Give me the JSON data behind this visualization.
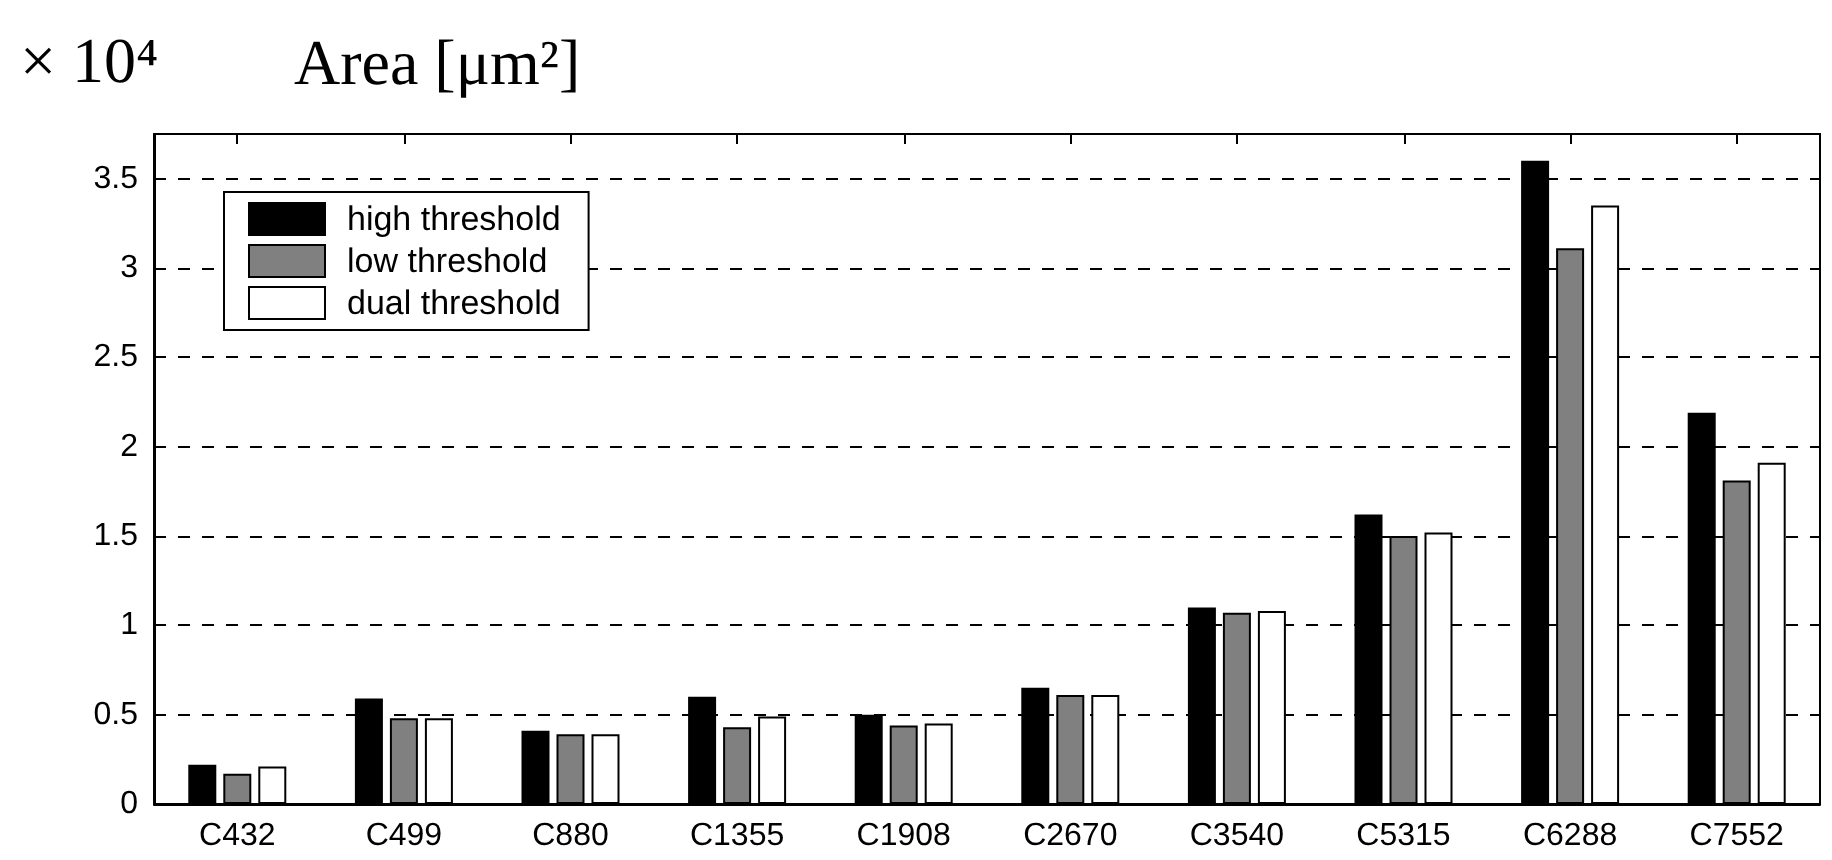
{
  "chart_data": {
    "type": "bar",
    "ylabel": "Area [μm²]",
    "annotations": [
      "× 10⁴"
    ],
    "categories": [
      "C432",
      "C499",
      "C880",
      "C1355",
      "C1908",
      "C2670",
      "C3540",
      "C5315",
      "C6288",
      "C7552"
    ],
    "series": [
      {
        "name": "high threshold",
        "color": "#000000",
        "values": [
          0.22,
          0.59,
          0.41,
          0.6,
          0.5,
          0.65,
          1.1,
          1.62,
          3.6,
          2.19
        ]
      },
      {
        "name": "low threshold",
        "color": "#808080",
        "values": [
          0.17,
          0.48,
          0.39,
          0.43,
          0.44,
          0.61,
          1.07,
          1.5,
          3.11,
          1.81
        ]
      },
      {
        "name": "dual threshold",
        "color": "#ffffff",
        "values": [
          0.21,
          0.48,
          0.39,
          0.49,
          0.45,
          0.61,
          1.08,
          1.52,
          3.35,
          1.91
        ]
      }
    ],
    "ylim": [
      0,
      3.75
    ],
    "yticks": [
      0,
      0.5,
      1,
      1.5,
      2,
      2.5,
      3,
      3.5
    ],
    "grid": "y",
    "legend": "top left"
  }
}
